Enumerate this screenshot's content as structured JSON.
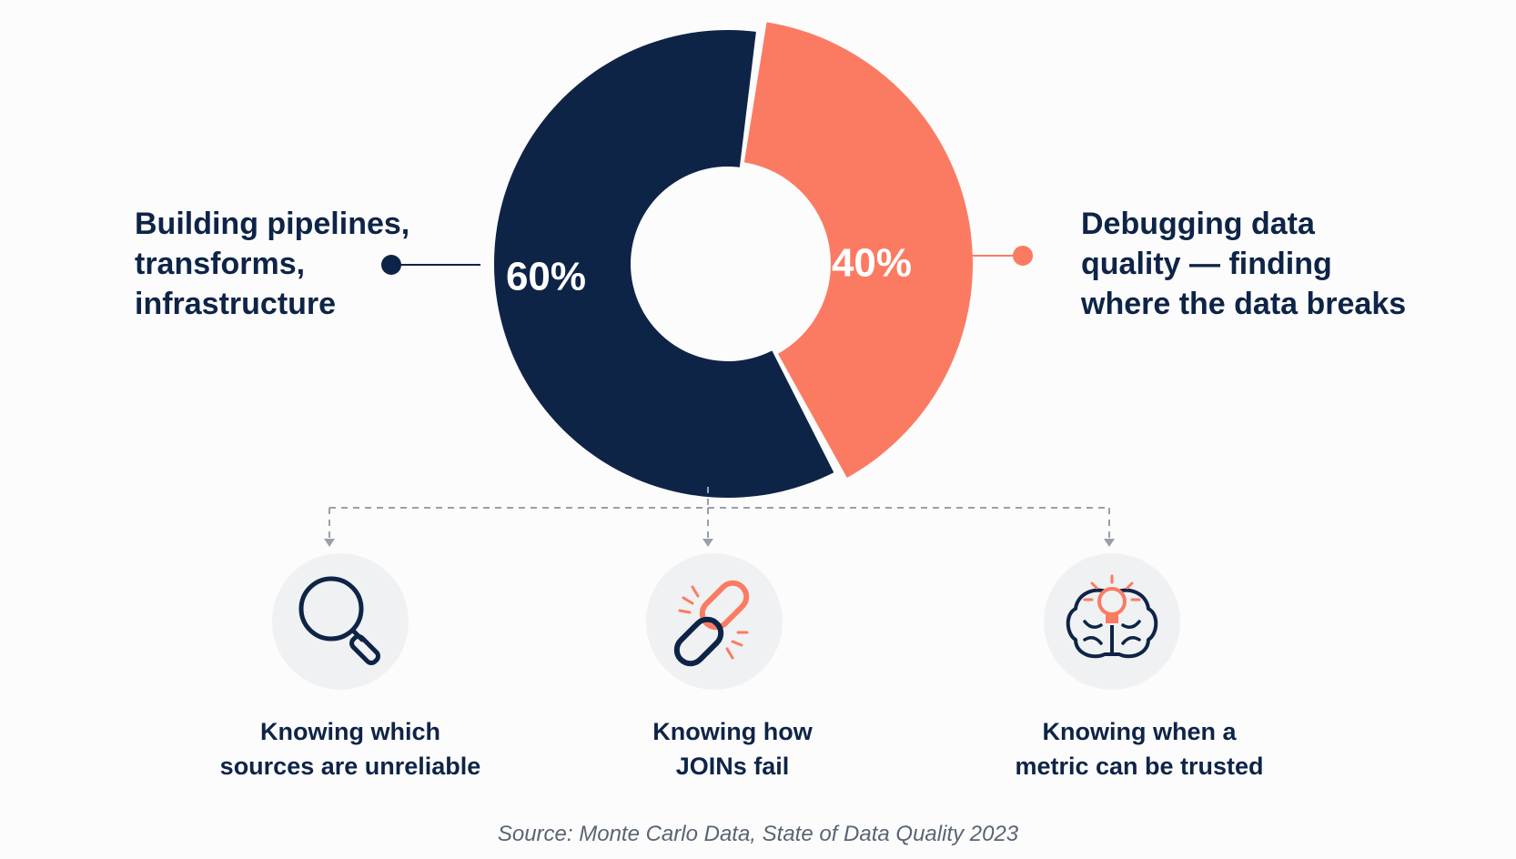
{
  "chart_data": {
    "type": "pie",
    "title": "",
    "categories": [
      "Building pipelines, transforms, infrastructure",
      "Debugging data quality — finding where the data breaks"
    ],
    "values": [
      60,
      40
    ],
    "value_labels": [
      "60%",
      "40%"
    ],
    "colors": [
      "#0e2447",
      "#fb7b62"
    ],
    "label_lines": [
      [
        "Building pipelines,",
        "transforms,",
        "infrastructure"
      ],
      [
        "Debugging data",
        "quality — finding",
        "where the data breaks"
      ]
    ],
    "legend": "none"
  },
  "breakdown": [
    {
      "icon": "magnifying-glass-icon",
      "lines": [
        "Knowing which",
        "sources are unreliable"
      ]
    },
    {
      "icon": "broken-chain-link-icon",
      "lines": [
        "Knowing how",
        "JOINs fail"
      ]
    },
    {
      "icon": "brain-lightbulb-icon",
      "lines": [
        "Knowing when a",
        "metric can be trusted"
      ]
    }
  ],
  "source": "Source: Monte Carlo Data, State of Data Quality 2023",
  "colors": {
    "navy": "#0e2447",
    "coral": "#fb7b62",
    "icon_bg": "#f0f1f3",
    "dash": "#9aa0a8",
    "source_text": "#5a6473"
  }
}
